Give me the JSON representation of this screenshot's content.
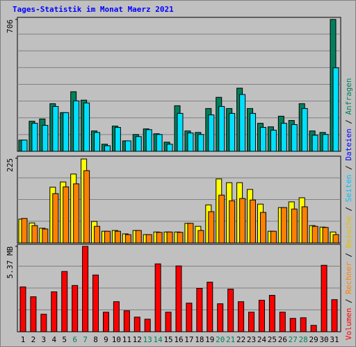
{
  "chart_data": [
    {
      "type": "bar",
      "title": "Tages-Statistik im Monat Maerz 2021",
      "ylim": [
        0,
        706
      ],
      "yticks": [
        706
      ],
      "series": [
        {
          "name": "Anfragen",
          "color": "#00805c",
          "values": [
            60,
            161,
            173,
            255,
            207,
            319,
            274,
            109,
            38,
            135,
            56,
            90,
            120,
            94,
            49,
            244,
            109,
            101,
            229,
            289,
            229,
            338,
            229,
            150,
            131,
            188,
            165,
            255,
            109,
            101,
            706
          ]
        },
        {
          "name": "Seiten",
          "color": "#00e0ff",
          "values": [
            60,
            150,
            139,
            240,
            207,
            270,
            259,
            101,
            30,
            128,
            56,
            79,
            116,
            90,
            38,
            203,
            98,
            90,
            195,
            240,
            203,
            304,
            203,
            128,
            113,
            150,
            143,
            229,
            86,
            90,
            447
          ]
        }
      ]
    },
    {
      "type": "bar",
      "ylim": [
        0,
        225
      ],
      "yticks": [
        225
      ],
      "series": [
        {
          "name": "Besuche",
          "color": "#ffff00",
          "values": [
            63,
            53,
            39,
            148,
            162,
            183,
            223,
            57,
            31,
            33,
            24,
            33,
            22,
            29,
            29,
            29,
            52,
            44,
            101,
            170,
            160,
            160,
            142,
            103,
            31,
            94,
            109,
            120,
            46,
            42,
            29
          ]
        },
        {
          "name": "Rechner",
          "color": "#ff8000",
          "values": [
            65,
            46,
            37,
            131,
            149,
            157,
            192,
            44,
            31,
            31,
            22,
            33,
            22,
            28,
            29,
            28,
            52,
            33,
            83,
            127,
            112,
            118,
            114,
            81,
            31,
            94,
            90,
            96,
            44,
            41,
            22
          ]
        }
      ]
    },
    {
      "type": "bar",
      "ylim": [
        0,
        5.37
      ],
      "yticks": [
        {
          "value": 5.37,
          "label": "5.37 MB"
        }
      ],
      "categories": [
        "1",
        "2",
        "3",
        "4",
        "5",
        "6",
        "7",
        "8",
        "9",
        "10",
        "11",
        "12",
        "13",
        "14",
        "15",
        "16",
        "17",
        "18",
        "19",
        "20",
        "21",
        "22",
        "23",
        "24",
        "25",
        "26",
        "27",
        "28",
        "29",
        "30",
        "31"
      ],
      "category_colors": [
        "#000000",
        "#000000",
        "#000000",
        "#000000",
        "#000000",
        "#00805c",
        "#00805c",
        "#000000",
        "#000000",
        "#000000",
        "#000000",
        "#000000",
        "#00805c",
        "#00805c",
        "#000000",
        "#000000",
        "#000000",
        "#000000",
        "#000000",
        "#00805c",
        "#00805c",
        "#000000",
        "#000000",
        "#000000",
        "#000000",
        "#000000",
        "#00805c",
        "#00805c",
        "#000000",
        "#000000",
        "#000000"
      ],
      "series": [
        {
          "name": "Volumen",
          "color": "#ff0000",
          "values": [
            2.82,
            2.2,
            1.1,
            2.51,
            3.79,
            2.91,
            5.37,
            3.57,
            1.23,
            1.89,
            1.32,
            0.92,
            0.79,
            4.27,
            1.23,
            4.14,
            1.8,
            2.73,
            3.12,
            1.76,
            2.68,
            1.89,
            1.23,
            1.98,
            2.29,
            1.23,
            0.84,
            0.88,
            0.4,
            4.18,
            2.02
          ]
        }
      ]
    }
  ],
  "legend": [
    {
      "text": "Volumen",
      "color": "#ff0000"
    },
    {
      "text": "Rechner",
      "color": "#ff8000"
    },
    {
      "text": "Besuche",
      "color": "#e0c000"
    },
    {
      "text": "Seiten",
      "color": "#00c0ff"
    },
    {
      "text": "Dateien",
      "color": "#0000ff"
    },
    {
      "text": "Anfragen",
      "color": "#00805c"
    }
  ],
  "legend_separator": " / "
}
